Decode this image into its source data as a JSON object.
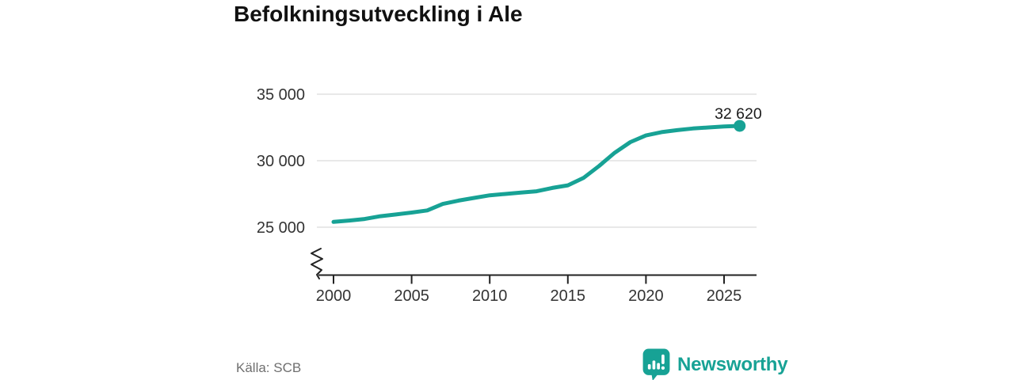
{
  "title": "Befolkningsutveckling i Ale",
  "source": "Källa: SCB",
  "branding": {
    "name": "Newsworthy",
    "icon": "newsworthy-speech-bubble-barchart-icon"
  },
  "colors": {
    "accent": "#17a295",
    "grid": "#d9d9d9",
    "axis": "#222222",
    "tick_text": "#333333",
    "title_text": "#111111",
    "muted_text": "#6f6f6f",
    "background": "#ffffff"
  },
  "chart_data": {
    "type": "line",
    "title": "Befolkningsutveckling i Ale",
    "xlabel": "",
    "ylabel": "",
    "x": [
      2000,
      2001,
      2002,
      2003,
      2004,
      2005,
      2006,
      2007,
      2008,
      2009,
      2010,
      2011,
      2012,
      2013,
      2014,
      2015,
      2016,
      2017,
      2018,
      2019,
      2020,
      2021,
      2022,
      2023,
      2024,
      2025,
      2026
    ],
    "series": [
      {
        "values": [
          25400,
          25500,
          25620,
          25830,
          25960,
          26100,
          26260,
          26750,
          27000,
          27200,
          27400,
          27500,
          27600,
          27700,
          27950,
          28150,
          28700,
          29600,
          30600,
          31400,
          31900,
          32150,
          32300,
          32420,
          32500,
          32570,
          32620
        ]
      }
    ],
    "end_point": {
      "x": 2026,
      "value": 32620,
      "label": "32 620"
    },
    "xticks": [
      {
        "value": 2000,
        "label": "2000"
      },
      {
        "value": 2005,
        "label": "2005"
      },
      {
        "value": 2010,
        "label": "2010"
      },
      {
        "value": 2015,
        "label": "2015"
      },
      {
        "value": 2020,
        "label": "2020"
      },
      {
        "value": 2025,
        "label": "2025"
      }
    ],
    "yticks": [
      {
        "value": 25000,
        "label": "25 000"
      },
      {
        "value": 30000,
        "label": "30 000"
      },
      {
        "value": 35000,
        "label": "35 000"
      }
    ],
    "ylim": [
      25000,
      35000
    ],
    "xlim": [
      2000,
      2027
    ],
    "axis_break": true,
    "grid": "horizontal",
    "legend": "none"
  }
}
